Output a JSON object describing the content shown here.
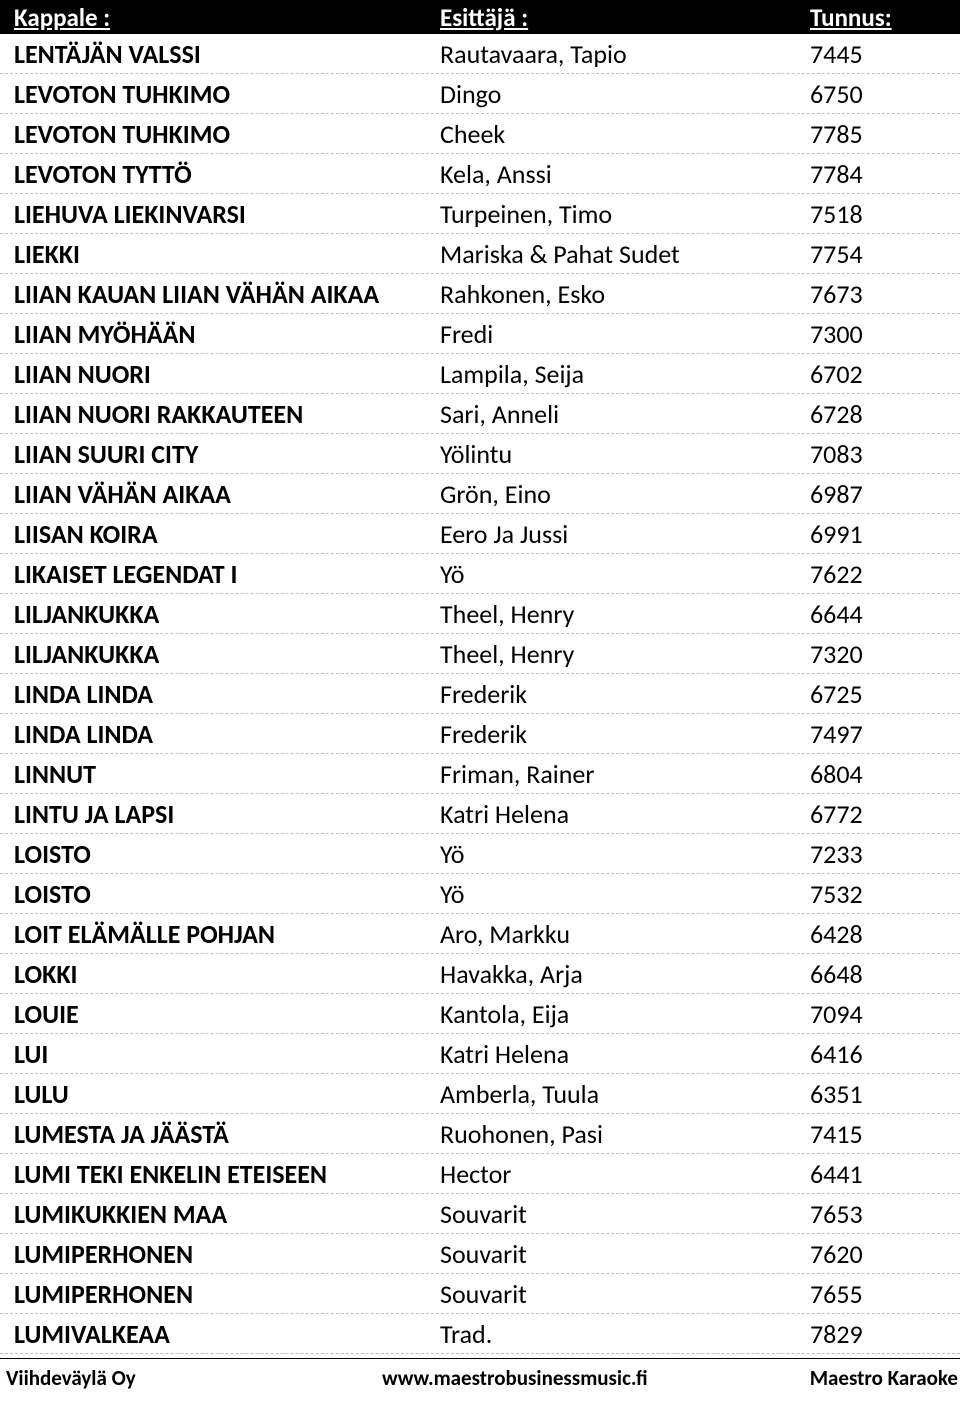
{
  "header": {
    "kappale": "Kappale :",
    "esittaja": "Esittäjä :",
    "tunnus": "Tunnus:"
  },
  "rows": [
    {
      "k": "LENTÄJÄN VALSSI",
      "e": "Rautavaara, Tapio",
      "t": "7445"
    },
    {
      "k": "LEVOTON TUHKIMO",
      "e": "Dingo",
      "t": "6750"
    },
    {
      "k": "LEVOTON TUHKIMO",
      "e": "Cheek",
      "t": "7785"
    },
    {
      "k": "LEVOTON TYTTÖ",
      "e": "Kela, Anssi",
      "t": "7784"
    },
    {
      "k": "LIEHUVA LIEKINVARSI",
      "e": "Turpeinen, Timo",
      "t": "7518"
    },
    {
      "k": "LIEKKI",
      "e": "Mariska & Pahat Sudet",
      "t": "7754"
    },
    {
      "k": "LIIAN KAUAN LIIAN VÄHÄN AIKAA",
      "e": "Rahkonen, Esko",
      "t": "7673"
    },
    {
      "k": "LIIAN MYÖHÄÄN",
      "e": "Fredi",
      "t": "7300"
    },
    {
      "k": "LIIAN NUORI",
      "e": "Lampila, Seija",
      "t": "6702"
    },
    {
      "k": "LIIAN NUORI RAKKAUTEEN",
      "e": "Sari, Anneli",
      "t": "6728"
    },
    {
      "k": "LIIAN SUURI CITY",
      "e": "Yölintu",
      "t": "7083"
    },
    {
      "k": "LIIAN VÄHÄN AIKAA",
      "e": "Grön, Eino",
      "t": "6987"
    },
    {
      "k": "LIISAN KOIRA",
      "e": "Eero Ja Jussi",
      "t": "6991"
    },
    {
      "k": "LIKAISET LEGENDAT I",
      "e": "Yö",
      "t": "7622"
    },
    {
      "k": "LILJANKUKKA",
      "e": "Theel, Henry",
      "t": "6644"
    },
    {
      "k": "LILJANKUKKA",
      "e": "Theel, Henry",
      "t": "7320"
    },
    {
      "k": "LINDA LINDA",
      "e": "Frederik",
      "t": "6725"
    },
    {
      "k": "LINDA LINDA",
      "e": "Frederik",
      "t": "7497"
    },
    {
      "k": "LINNUT",
      "e": "Friman, Rainer",
      "t": "6804"
    },
    {
      "k": "LINTU JA LAPSI",
      "e": "Katri Helena",
      "t": "6772"
    },
    {
      "k": "LOISTO",
      "e": "Yö",
      "t": "7233"
    },
    {
      "k": "LOISTO",
      "e": "Yö",
      "t": "7532"
    },
    {
      "k": "LOIT ELÄMÄLLE POHJAN",
      "e": "Aro, Markku",
      "t": "6428"
    },
    {
      "k": "LOKKI",
      "e": "Havakka, Arja",
      "t": "6648"
    },
    {
      "k": "LOUIE",
      "e": "Kantola, Eija",
      "t": "7094"
    },
    {
      "k": "LUI",
      "e": "Katri Helena",
      "t": "6416"
    },
    {
      "k": "LULU",
      "e": "Amberla, Tuula",
      "t": "6351"
    },
    {
      "k": "LUMESTA JA JÄÄSTÄ",
      "e": "Ruohonen, Pasi",
      "t": "7415"
    },
    {
      "k": "LUMI TEKI ENKELIN ETEISEEN",
      "e": "Hector",
      "t": "6441"
    },
    {
      "k": "LUMIKUKKIEN MAA",
      "e": "Souvarit",
      "t": "7653"
    },
    {
      "k": "LUMIPERHONEN",
      "e": "Souvarit",
      "t": "7620"
    },
    {
      "k": "LUMIPERHONEN",
      "e": "Souvarit",
      "t": "7655"
    },
    {
      "k": "LUMIVALKEAA",
      "e": "Trad.",
      "t": "7829"
    }
  ],
  "footer": {
    "left": "Viihdeväylä Oy",
    "center": "www.maestrobusinessmusic.fi",
    "right": "Maestro Karaoke"
  },
  "styles": {
    "header_bg": "#000000",
    "header_fg": "#ffffff",
    "row_border": "#bfbfbf",
    "body_fg": "#000000",
    "header_fontsize": 25,
    "row_fontsize": 26,
    "footer_fontsize": 21
  }
}
